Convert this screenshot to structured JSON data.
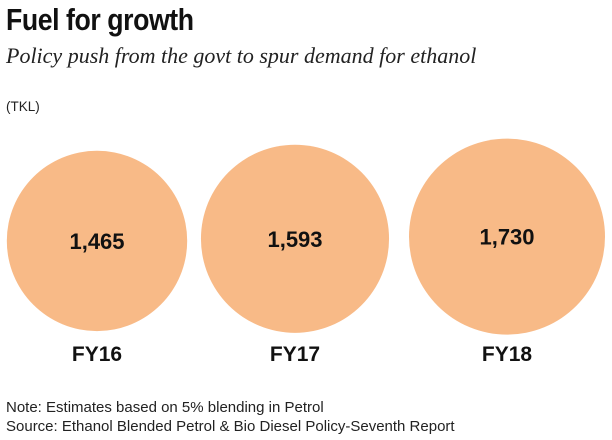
{
  "header": {
    "title": "Fuel for growth",
    "subtitle": "Policy push from the govt to spur demand for ethanol",
    "unit": "(TKL)"
  },
  "chart_data": {
    "type": "bubble",
    "categories": [
      "FY16",
      "FY17",
      "FY18"
    ],
    "values": [
      1465,
      1593,
      1730
    ],
    "value_labels": [
      "1,465",
      "1,593",
      "1,730"
    ],
    "ylabel": "(TKL)",
    "color": "#F8BA87",
    "grid": false,
    "legend": "none"
  },
  "footer": {
    "note": "Note: Estimates based on 5% blending in Petrol",
    "source": "Source: Ethanol Blended Petrol & Bio Diesel Policy-Seventh Report"
  }
}
